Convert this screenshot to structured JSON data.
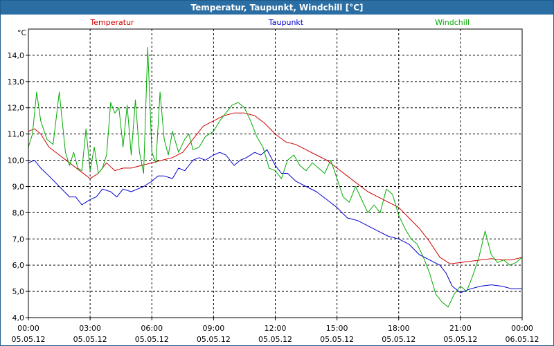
{
  "window_title": "Temperatur, Taupunkt, Windchill [°C]",
  "chart_data": {
    "type": "line",
    "title": "Temperatur, Taupunkt, Windchill [°C]",
    "ylabel": "°C",
    "xlabel": "",
    "ylim": [
      4.0,
      15.0
    ],
    "xlim_hours": [
      0,
      24
    ],
    "grid": true,
    "y_ticks": [
      "4,0",
      "5,0",
      "6,0",
      "7,0",
      "8,0",
      "9,0",
      "10,0",
      "11,0",
      "12,0",
      "13,0",
      "14,0"
    ],
    "x_ticks": [
      {
        "time": "00:00",
        "date": "05.05.12"
      },
      {
        "time": "03:00",
        "date": "05.05.12"
      },
      {
        "time": "06:00",
        "date": "05.05.12"
      },
      {
        "time": "09:00",
        "date": "05.05.12"
      },
      {
        "time": "12:00",
        "date": "05.05.12"
      },
      {
        "time": "15:00",
        "date": "05.05.12"
      },
      {
        "time": "18:00",
        "date": "05.05.12"
      },
      {
        "time": "21:00",
        "date": "05.05.12"
      },
      {
        "time": "00:00",
        "date": "06.05.12"
      }
    ],
    "series": [
      {
        "name": "Temperatur",
        "color": "#cc0000",
        "x": [
          0,
          0.3,
          0.6,
          1.0,
          1.5,
          2.0,
          2.5,
          3.0,
          3.4,
          3.8,
          4.2,
          4.6,
          5.0,
          5.5,
          6.0,
          6.5,
          7.0,
          7.5,
          8.0,
          8.5,
          9.0,
          9.5,
          10.0,
          10.5,
          11.0,
          11.5,
          12.0,
          12.5,
          13.0,
          13.5,
          14.0,
          14.5,
          15.0,
          15.5,
          16.0,
          16.5,
          17.0,
          17.5,
          18.0,
          18.5,
          19.0,
          19.5,
          20.0,
          20.5,
          21.0,
          21.5,
          22.0,
          22.5,
          23.0,
          23.5,
          24.0
        ],
        "values": [
          11.1,
          11.2,
          11.0,
          10.5,
          10.2,
          9.9,
          9.6,
          9.3,
          9.5,
          9.9,
          9.6,
          9.7,
          9.7,
          9.8,
          9.9,
          10.0,
          10.1,
          10.3,
          10.8,
          11.3,
          11.5,
          11.7,
          11.8,
          11.8,
          11.7,
          11.4,
          11.0,
          10.7,
          10.6,
          10.4,
          10.2,
          10.0,
          9.7,
          9.4,
          9.1,
          8.8,
          8.6,
          8.4,
          8.2,
          7.8,
          7.4,
          6.9,
          6.3,
          6.05,
          6.1,
          6.15,
          6.2,
          6.25,
          6.2,
          6.2,
          6.3
        ]
      },
      {
        "name": "Taupunkt",
        "color": "#0000cc",
        "x": [
          0,
          0.3,
          0.6,
          1.0,
          1.5,
          2.0,
          2.3,
          2.6,
          3.0,
          3.3,
          3.6,
          4.0,
          4.3,
          4.6,
          5.0,
          5.3,
          5.6,
          6.0,
          6.3,
          6.6,
          7.0,
          7.3,
          7.6,
          8.0,
          8.3,
          8.6,
          9.0,
          9.3,
          9.6,
          10.0,
          10.3,
          10.6,
          11.0,
          11.3,
          11.6,
          12.0,
          12.3,
          12.6,
          13.0,
          13.5,
          14.0,
          14.5,
          15.0,
          15.5,
          16.0,
          16.5,
          17.0,
          17.5,
          18.0,
          18.5,
          19.0,
          19.5,
          20.0,
          20.3,
          20.6,
          21.0,
          21.5,
          22.0,
          22.5,
          23.0,
          23.5,
          24.0
        ],
        "values": [
          9.9,
          10.0,
          9.7,
          9.4,
          9.0,
          8.6,
          8.6,
          8.3,
          8.5,
          8.6,
          8.9,
          8.8,
          8.6,
          8.9,
          8.8,
          8.9,
          9.0,
          9.2,
          9.4,
          9.4,
          9.3,
          9.7,
          9.6,
          10.0,
          10.1,
          10.0,
          10.2,
          10.3,
          10.2,
          9.8,
          10.0,
          10.1,
          10.3,
          10.2,
          10.4,
          9.8,
          9.5,
          9.5,
          9.2,
          9.0,
          8.8,
          8.5,
          8.2,
          7.8,
          7.7,
          7.5,
          7.3,
          7.1,
          7.0,
          6.8,
          6.4,
          6.2,
          6.0,
          5.7,
          5.2,
          4.95,
          5.1,
          5.2,
          5.25,
          5.2,
          5.1,
          5.1
        ]
      },
      {
        "name": "Windchill",
        "color": "#00aa00",
        "x": [
          0,
          0.2,
          0.4,
          0.6,
          0.9,
          1.2,
          1.5,
          1.8,
          2.0,
          2.2,
          2.4,
          2.6,
          2.8,
          3.0,
          3.2,
          3.4,
          3.6,
          3.8,
          4.0,
          4.2,
          4.4,
          4.6,
          4.8,
          5.0,
          5.2,
          5.4,
          5.6,
          5.8,
          6.0,
          6.2,
          6.4,
          6.6,
          6.8,
          7.0,
          7.3,
          7.6,
          7.8,
          8.0,
          8.3,
          8.6,
          9.0,
          9.3,
          9.6,
          9.9,
          10.2,
          10.5,
          10.8,
          11.1,
          11.4,
          11.7,
          12.0,
          12.3,
          12.6,
          12.9,
          13.2,
          13.5,
          13.8,
          14.1,
          14.4,
          14.7,
          15.0,
          15.3,
          15.6,
          15.9,
          16.2,
          16.5,
          16.8,
          17.1,
          17.4,
          17.7,
          18.0,
          18.3,
          18.6,
          18.9,
          19.2,
          19.5,
          19.8,
          20.1,
          20.4,
          20.7,
          21.0,
          21.3,
          21.6,
          21.9,
          22.2,
          22.5,
          22.8,
          23.1,
          23.4,
          23.7,
          24.0
        ],
        "values": [
          10.5,
          11.0,
          12.6,
          11.5,
          10.8,
          10.6,
          12.6,
          10.3,
          9.8,
          10.3,
          9.7,
          9.6,
          11.2,
          9.6,
          10.5,
          9.5,
          9.7,
          10.2,
          12.2,
          11.8,
          12.0,
          10.5,
          12.1,
          10.2,
          12.3,
          10.3,
          9.5,
          14.3,
          10.3,
          9.9,
          12.6,
          10.8,
          10.2,
          11.1,
          10.3,
          10.8,
          11.0,
          10.4,
          10.5,
          10.9,
          11.1,
          11.5,
          11.8,
          12.1,
          12.2,
          12.0,
          11.5,
          10.9,
          10.5,
          9.7,
          9.6,
          9.3,
          10.0,
          10.2,
          9.8,
          9.6,
          9.9,
          9.7,
          9.5,
          10.0,
          9.3,
          8.6,
          8.4,
          9.0,
          8.5,
          8.0,
          8.3,
          8.0,
          8.9,
          8.7,
          7.9,
          7.4,
          7.0,
          6.8,
          6.3,
          5.7,
          4.9,
          4.6,
          4.4,
          4.9,
          5.2,
          5.0,
          5.6,
          6.3,
          7.3,
          6.4,
          6.1,
          6.2,
          6.0,
          6.1,
          6.3
        ]
      }
    ]
  }
}
